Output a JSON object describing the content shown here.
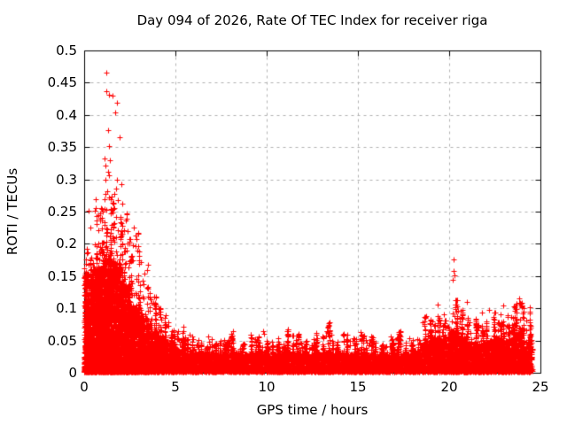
{
  "chart_data": {
    "type": "scatter",
    "title": "Day 094 of 2026, Rate Of TEC Index for receiver riga",
    "xlabel": "GPS time / hours",
    "ylabel": "ROTI / TECUs",
    "series_name": "ROTI",
    "xlim": [
      0,
      25
    ],
    "ylim": [
      0,
      0.5
    ],
    "xticks": {
      "values": [
        0,
        5,
        10,
        15,
        20,
        25
      ],
      "labels": [
        "0",
        "5",
        "10",
        "15",
        "20",
        "25"
      ]
    },
    "yticks": {
      "values": [
        0,
        0.05,
        0.1,
        0.15,
        0.2,
        0.25,
        0.3,
        0.35,
        0.4,
        0.45,
        0.5
      ],
      "labels": [
        "0",
        "0.05",
        "0.1",
        "0.15",
        "0.2",
        "0.25",
        "0.3",
        "0.35",
        "0.4",
        "0.45",
        "0.5"
      ]
    },
    "grid": {
      "show": true,
      "color": "#b0b0b0",
      "dash": [
        3,
        4
      ]
    },
    "marker": {
      "shape": "plus",
      "color": "#ff0000",
      "size": 7,
      "line_width": 1
    },
    "axis_color": "#000000",
    "background": "#ffffff",
    "data_x_range": [
      0,
      24.55
    ],
    "density_bins": [
      [
        0.0,
        0.5,
        0.155,
        0.2,
        700
      ],
      [
        0.5,
        1.0,
        0.16,
        0.27,
        780
      ],
      [
        1.0,
        1.5,
        0.175,
        0.3,
        840
      ],
      [
        1.5,
        2.0,
        0.17,
        0.3,
        800
      ],
      [
        2.0,
        2.5,
        0.135,
        0.25,
        680
      ],
      [
        2.5,
        3.0,
        0.105,
        0.225,
        540
      ],
      [
        3.0,
        3.5,
        0.085,
        0.17,
        440
      ],
      [
        3.5,
        4.0,
        0.065,
        0.135,
        370
      ],
      [
        4.0,
        4.5,
        0.055,
        0.11,
        310
      ],
      [
        4.5,
        5.0,
        0.045,
        0.095,
        270
      ],
      [
        5.0,
        5.5,
        0.035,
        0.075,
        195
      ],
      [
        5.5,
        6.0,
        0.032,
        0.065,
        170
      ],
      [
        6.0,
        6.5,
        0.03,
        0.055,
        160
      ],
      [
        6.5,
        7.0,
        0.032,
        0.065,
        160
      ],
      [
        7.0,
        7.5,
        0.03,
        0.06,
        160
      ],
      [
        7.5,
        8.0,
        0.028,
        0.055,
        150
      ],
      [
        8.0,
        8.5,
        0.03,
        0.07,
        160
      ],
      [
        8.5,
        9.0,
        0.028,
        0.055,
        150
      ],
      [
        9.0,
        9.5,
        0.03,
        0.06,
        155
      ],
      [
        9.5,
        10.0,
        0.032,
        0.065,
        160
      ],
      [
        10.0,
        10.5,
        0.028,
        0.055,
        150
      ],
      [
        10.5,
        11.0,
        0.03,
        0.06,
        155
      ],
      [
        11.0,
        11.5,
        0.032,
        0.075,
        165
      ],
      [
        11.5,
        12.0,
        0.03,
        0.065,
        160
      ],
      [
        12.0,
        12.5,
        0.028,
        0.055,
        150
      ],
      [
        12.5,
        13.0,
        0.03,
        0.07,
        160
      ],
      [
        13.0,
        13.5,
        0.032,
        0.08,
        165
      ],
      [
        13.5,
        14.0,
        0.028,
        0.06,
        150
      ],
      [
        14.0,
        14.5,
        0.03,
        0.065,
        155
      ],
      [
        14.5,
        15.0,
        0.028,
        0.055,
        150
      ],
      [
        15.0,
        15.5,
        0.03,
        0.07,
        160
      ],
      [
        15.5,
        16.0,
        0.028,
        0.06,
        150
      ],
      [
        16.0,
        16.5,
        0.027,
        0.055,
        150
      ],
      [
        16.5,
        17.0,
        0.028,
        0.06,
        150
      ],
      [
        17.0,
        17.5,
        0.03,
        0.075,
        160
      ],
      [
        17.5,
        18.0,
        0.028,
        0.06,
        155
      ],
      [
        18.0,
        18.5,
        0.032,
        0.065,
        160
      ],
      [
        18.5,
        19.0,
        0.045,
        0.09,
        220
      ],
      [
        19.0,
        19.5,
        0.055,
        0.105,
        260
      ],
      [
        19.5,
        20.0,
        0.05,
        0.1,
        240
      ],
      [
        20.0,
        20.5,
        0.065,
        0.125,
        300
      ],
      [
        20.5,
        21.0,
        0.055,
        0.12,
        280
      ],
      [
        21.0,
        21.5,
        0.045,
        0.09,
        230
      ],
      [
        21.5,
        22.0,
        0.045,
        0.095,
        230
      ],
      [
        22.0,
        22.5,
        0.05,
        0.1,
        250
      ],
      [
        22.5,
        23.0,
        0.055,
        0.105,
        260
      ],
      [
        23.0,
        23.5,
        0.05,
        0.09,
        240
      ],
      [
        23.5,
        24.0,
        0.065,
        0.12,
        290
      ],
      [
        24.0,
        24.55,
        0.05,
        0.105,
        240
      ]
    ],
    "outliers": [
      [
        0.25,
        0.252
      ],
      [
        0.35,
        0.225
      ],
      [
        1.2,
        0.465
      ],
      [
        1.2,
        0.437
      ],
      [
        1.35,
        0.432
      ],
      [
        1.55,
        0.43
      ],
      [
        1.8,
        0.419
      ],
      [
        1.7,
        0.404
      ],
      [
        1.3,
        0.376
      ],
      [
        1.95,
        0.365
      ],
      [
        1.35,
        0.352
      ],
      [
        1.1,
        0.333
      ],
      [
        1.4,
        0.329
      ],
      [
        1.15,
        0.321
      ],
      [
        1.3,
        0.312
      ],
      [
        1.35,
        0.306
      ],
      [
        2.05,
        0.293
      ],
      [
        1.25,
        0.281
      ],
      [
        1.15,
        0.277
      ],
      [
        1.35,
        0.272
      ],
      [
        2.1,
        0.262
      ],
      [
        1.2,
        0.253
      ],
      [
        1.45,
        0.247
      ],
      [
        2.7,
        0.225
      ],
      [
        2.8,
        0.213
      ],
      [
        3.1,
        0.172
      ],
      [
        20.25,
        0.176
      ],
      [
        20.22,
        0.158
      ],
      [
        20.28,
        0.151
      ],
      [
        20.2,
        0.144
      ],
      [
        23.85,
        0.116
      ],
      [
        23.9,
        0.108
      ],
      [
        19.35,
        0.106
      ],
      [
        22.95,
        0.104
      ],
      [
        24.1,
        0.1
      ]
    ],
    "seed": 94
  }
}
